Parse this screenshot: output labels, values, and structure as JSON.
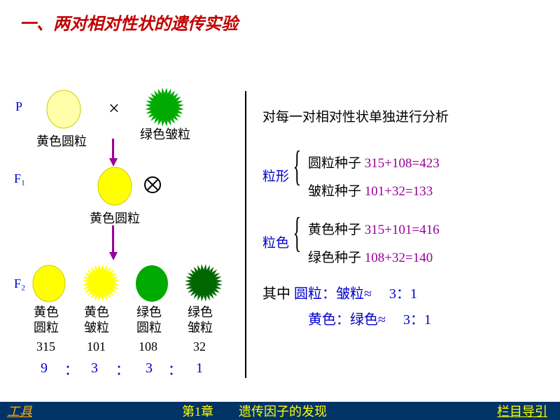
{
  "title": "一、两对相对性状的遗传实验",
  "generations": {
    "P": "P",
    "F1": "F₁",
    "F2": "F₂"
  },
  "parents": {
    "p1_label": "黄色圆粒",
    "p2_label": "绿色皱粒",
    "cross_symbol": "×"
  },
  "f1": {
    "label": "黄色圆粒"
  },
  "f2": {
    "phenotypes": [
      {
        "label": "黄色\n圆粒",
        "count": "315",
        "color": "#ffff00",
        "wrinkled": false
      },
      {
        "label": "黄色\n皱粒",
        "count": "101",
        "color": "#ffff00",
        "wrinkled": true
      },
      {
        "label": "绿色\n圆粒",
        "count": "108",
        "color": "#00aa00",
        "wrinkled": false
      },
      {
        "label": "绿色\n皱粒",
        "count": "32",
        "color": "#006600",
        "wrinkled": true
      }
    ],
    "ratio": [
      "9",
      "：",
      "3",
      "：",
      "3",
      "：",
      "1"
    ]
  },
  "analysis": {
    "title": "对每一对相对性状单独进行分析",
    "shape_label": "粒形",
    "shape_round": "圆粒种子",
    "shape_round_calc": "315+108=423",
    "shape_wrinkled": "皱粒种子",
    "shape_wrinkled_calc": "101+32=133",
    "color_label": "粒色",
    "color_yellow": "黄色种子",
    "color_yellow_calc": "315+101=416",
    "color_green": "绿色种子",
    "color_green_calc": "108+32=140",
    "conclusion_prefix": "其中",
    "round_wrinkled_ratio": "圆粒：皱粒≈",
    "ratio_31_a": "3：1",
    "yellow_green_ratio": "黄色：绿色≈",
    "ratio_31_b": "3：1"
  },
  "footer": {
    "left": "工具",
    "center": "第1章　　遗传因子的发现",
    "right": "栏目导引"
  },
  "colors": {
    "yellow_light": "#ffffaa",
    "yellow": "#ffff00",
    "green": "#00aa00",
    "dark_green": "#006600"
  }
}
